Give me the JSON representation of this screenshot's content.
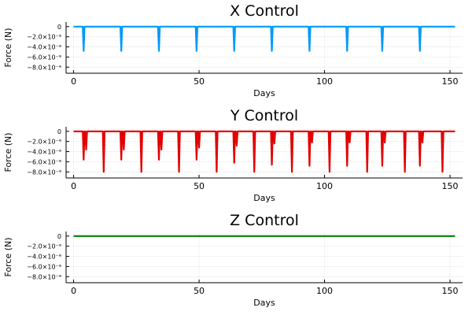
{
  "chart_data": [
    {
      "type": "line",
      "title": "X Control",
      "xlabel": "Days",
      "ylabel": "Force (N)",
      "xlim": [
        -3,
        155
      ],
      "ylim": [
        -9.2e-09,
        9e-10
      ],
      "xticks": [
        0,
        50,
        100,
        150
      ],
      "yticks": [
        0,
        -2e-09,
        -4e-09,
        -6e-09,
        -8e-09
      ],
      "ytick_labels": [
        "0",
        "−2.0×10⁻⁹",
        "−4.0×10⁻⁹",
        "−6.0×10⁻⁹",
        "−8.0×10⁻⁹"
      ],
      "grid": true,
      "legend": false,
      "color": "#009AFA",
      "series": [
        {
          "x_range": [
            0,
            152
          ],
          "baseline": 0,
          "spikes": [
            {
              "x": 4,
              "y": -4.8e-09
            },
            {
              "x": 19,
              "y": -4.8e-09
            },
            {
              "x": 34,
              "y": -4.8e-09
            },
            {
              "x": 49,
              "y": -4.8e-09
            },
            {
              "x": 64,
              "y": -4.8e-09
            },
            {
              "x": 79,
              "y": -4.8e-09
            },
            {
              "x": 94,
              "y": -4.8e-09
            },
            {
              "x": 109,
              "y": -4.8e-09
            },
            {
              "x": 123,
              "y": -4.8e-09
            },
            {
              "x": 138,
              "y": -4.8e-09
            }
          ]
        }
      ]
    },
    {
      "type": "line",
      "title": "Y Control",
      "xlabel": "Days",
      "ylabel": "Force (N)",
      "xlim": [
        -3,
        155
      ],
      "ylim": [
        -9.2e-09,
        9e-10
      ],
      "xticks": [
        0,
        50,
        100,
        150
      ],
      "yticks": [
        0,
        -2e-09,
        -4e-09,
        -6e-09,
        -8e-09
      ],
      "ytick_labels": [
        "0",
        "−2.0×10⁻⁹",
        "−4.0×10⁻⁹",
        "−6.0×10⁻⁹",
        "−8.0×10⁻⁹"
      ],
      "grid": true,
      "legend": false,
      "color": "#E30000",
      "series": [
        {
          "x_range": [
            0,
            152
          ],
          "baseline": 0,
          "spikes": [
            {
              "x": 4,
              "y": -5.6e-09
            },
            {
              "x": 5,
              "y": -3.6e-09
            },
            {
              "x": 12,
              "y": -8e-09
            },
            {
              "x": 19,
              "y": -5.6e-09
            },
            {
              "x": 20,
              "y": -3.6e-09
            },
            {
              "x": 27,
              "y": -8e-09
            },
            {
              "x": 34,
              "y": -5.6e-09
            },
            {
              "x": 35,
              "y": -3.6e-09
            },
            {
              "x": 42,
              "y": -8e-09
            },
            {
              "x": 49,
              "y": -5.6e-09
            },
            {
              "x": 50,
              "y": -3.2e-09
            },
            {
              "x": 57,
              "y": -8e-09
            },
            {
              "x": 64,
              "y": -6.2e-09
            },
            {
              "x": 65,
              "y": -2.8e-09
            },
            {
              "x": 72,
              "y": -8e-09
            },
            {
              "x": 79,
              "y": -6.6e-09
            },
            {
              "x": 80,
              "y": -2.4e-09
            },
            {
              "x": 87,
              "y": -8e-09
            },
            {
              "x": 94,
              "y": -6.8e-09
            },
            {
              "x": 95,
              "y": -2.2e-09
            },
            {
              "x": 102,
              "y": -8e-09
            },
            {
              "x": 109,
              "y": -6.8e-09
            },
            {
              "x": 110,
              "y": -2.2e-09
            },
            {
              "x": 117,
              "y": -8e-09
            },
            {
              "x": 123,
              "y": -6.8e-09
            },
            {
              "x": 124,
              "y": -2.2e-09
            },
            {
              "x": 132,
              "y": -8e-09
            },
            {
              "x": 138,
              "y": -6.8e-09
            },
            {
              "x": 139,
              "y": -2.2e-09
            },
            {
              "x": 147,
              "y": -8e-09
            }
          ]
        }
      ]
    },
    {
      "type": "line",
      "title": "Z Control",
      "xlabel": "Days",
      "ylabel": "Force (N)",
      "xlim": [
        -3,
        155
      ],
      "ylim": [
        -9.2e-09,
        9e-10
      ],
      "xticks": [
        0,
        50,
        100,
        150
      ],
      "yticks": [
        0,
        -2e-09,
        -4e-09,
        -6e-09,
        -8e-09
      ],
      "ytick_labels": [
        "0",
        "−2.0×10⁻⁹",
        "−4.0×10⁻⁹",
        "−6.0×10⁻⁹",
        "−8.0×10⁻⁹"
      ],
      "grid": true,
      "legend": false,
      "color": "#008000",
      "series": [
        {
          "x_range": [
            0,
            152
          ],
          "baseline": 0,
          "spikes": []
        }
      ]
    }
  ]
}
